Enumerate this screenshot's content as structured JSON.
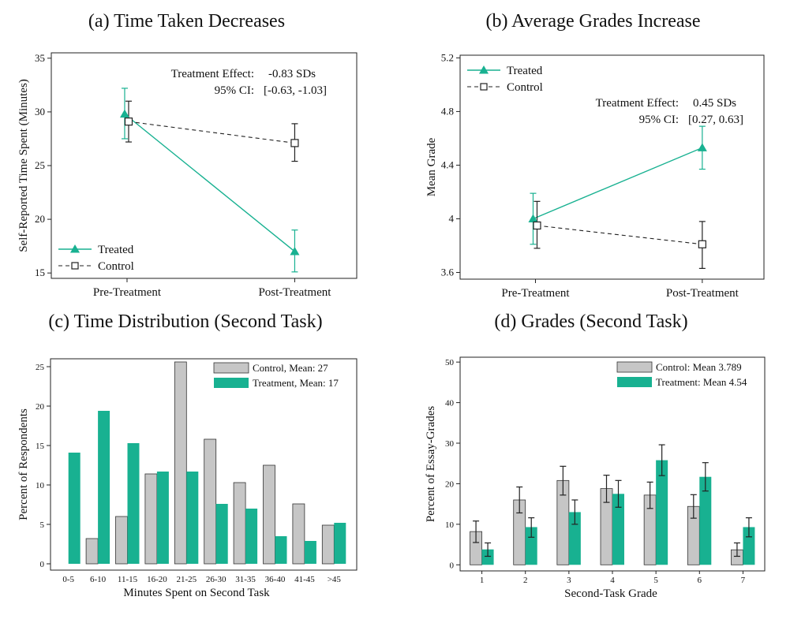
{
  "colors": {
    "treated": "#18b191",
    "control_bar": "#c6c6c6",
    "control_line": "#222222",
    "axis": "#222222"
  },
  "chart_data": [
    {
      "id": "a",
      "type": "line",
      "title": "(a) Time Taken Decreases",
      "xlabel": "",
      "ylabel": "Self-Reported Time Spent (Minutes)",
      "categories": [
        "Pre-Treatment",
        "Post-Treatment"
      ],
      "ylim": [
        14.5,
        35.5
      ],
      "yticks": [
        15,
        20,
        25,
        30,
        35
      ],
      "ytick_labels": [
        "15",
        "20",
        "25",
        "30",
        "35"
      ],
      "series": [
        {
          "name": "Treated",
          "values": [
            29.8,
            17.0
          ],
          "err_low": [
            27.5,
            15.1
          ],
          "err_high": [
            32.2,
            19.0
          ]
        },
        {
          "name": "Control",
          "values": [
            29.1,
            27.1
          ],
          "err_low": [
            27.2,
            25.4
          ],
          "err_high": [
            31.0,
            28.9
          ]
        }
      ],
      "legend": [
        "Treated",
        "Control"
      ],
      "annotation": {
        "line1_label": "Treatment Effect:",
        "line1_value": "-0.83 SDs",
        "line2_label": "95% CI:",
        "line2_value": "[-0.63, -1.03]"
      }
    },
    {
      "id": "b",
      "type": "line",
      "title": "(b) Average Grades Increase",
      "xlabel": "",
      "ylabel": "Mean Grade",
      "categories": [
        "Pre-Treatment",
        "Post-Treatment"
      ],
      "ylim": [
        3.55,
        5.22
      ],
      "yticks": [
        3.6,
        4.0,
        4.4,
        4.8,
        5.2
      ],
      "ytick_labels": [
        "3.6",
        "4",
        "4.4",
        "4.8",
        "5.2"
      ],
      "series": [
        {
          "name": "Treated",
          "values": [
            4.0,
            4.53
          ],
          "err_low": [
            3.81,
            4.37
          ],
          "err_high": [
            4.19,
            4.69
          ]
        },
        {
          "name": "Control",
          "values": [
            3.95,
            3.81
          ],
          "err_low": [
            3.78,
            3.63
          ],
          "err_high": [
            4.13,
            3.98
          ]
        }
      ],
      "legend": [
        "Treated",
        "Control"
      ],
      "annotation": {
        "line1_label": "Treatment Effect:",
        "line1_value": "0.45 SDs",
        "line2_label": "95% CI:",
        "line2_value": "[0.27, 0.63]"
      }
    },
    {
      "id": "c",
      "type": "bar",
      "title": "(c) Time Distribution (Second Task)",
      "xlabel": "Minutes Spent on Second Task",
      "ylabel": "Percent of Respondents",
      "categories": [
        "0-5",
        "6-10",
        "11-15",
        "16-20",
        "21-25",
        "26-30",
        "31-35",
        "36-40",
        "41-45",
        ">45"
      ],
      "ylim": [
        -0.8,
        26.0
      ],
      "yticks": [
        0,
        5,
        10,
        15,
        20,
        25
      ],
      "ytick_labels": [
        "0",
        "5",
        "10",
        "15",
        "20",
        "25"
      ],
      "series": [
        {
          "name": "Control, Mean: 27",
          "values": [
            0,
            3.2,
            6.0,
            11.4,
            25.6,
            15.8,
            10.3,
            12.5,
            7.6,
            4.9
          ]
        },
        {
          "name": "Treatment, Mean: 17",
          "values": [
            14.1,
            19.4,
            15.3,
            11.7,
            11.7,
            7.6,
            7.0,
            3.5,
            2.9,
            5.2
          ]
        }
      ],
      "legend": [
        "Control, Mean: 27",
        "Treatment, Mean: 17"
      ]
    },
    {
      "id": "d",
      "type": "bar",
      "title": "(d) Grades (Second Task)",
      "xlabel": "Second-Task Grade",
      "ylabel": "Percent of Essay-Grades",
      "categories": [
        "1",
        "2",
        "3",
        "4",
        "5",
        "6",
        "7"
      ],
      "ylim": [
        -1.5,
        51.2
      ],
      "yticks": [
        0,
        10,
        20,
        30,
        40,
        50
      ],
      "ytick_labels": [
        "0",
        "10",
        "20",
        "30",
        "40",
        "50"
      ],
      "series": [
        {
          "name": "Control: Mean 3.789",
          "values": [
            8.2,
            16.0,
            20.8,
            18.8,
            17.2,
            14.4,
            3.7
          ],
          "err_low": [
            5.5,
            12.8,
            17.2,
            15.4,
            13.9,
            11.5,
            2.1
          ],
          "err_high": [
            10.8,
            19.2,
            24.3,
            22.1,
            20.4,
            17.3,
            5.4
          ]
        },
        {
          "name": "Treatment: Mean 4.54",
          "values": [
            3.8,
            9.3,
            13.0,
            17.5,
            25.8,
            21.7,
            9.3
          ],
          "err_low": [
            2.1,
            6.8,
            10.0,
            14.2,
            22.0,
            18.2,
            6.9
          ],
          "err_high": [
            5.4,
            11.6,
            16.0,
            20.8,
            29.6,
            25.2,
            11.6
          ]
        }
      ],
      "legend": [
        "Control: Mean 3.789",
        "Treatment: Mean 4.54"
      ]
    }
  ]
}
